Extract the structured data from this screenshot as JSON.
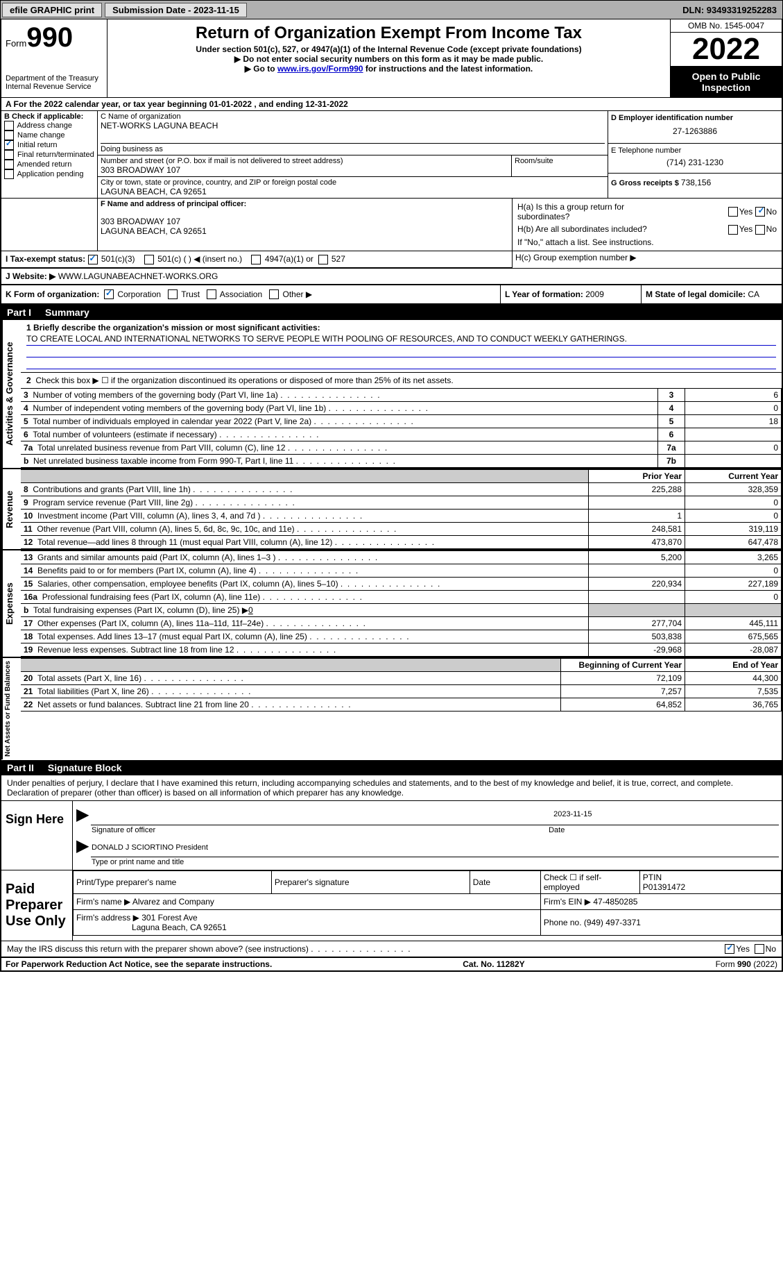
{
  "topbar": {
    "efile": "efile GRAPHIC print",
    "submission_label": "Submission Date - 2023-11-15",
    "dln_label": "DLN: 93493319252283"
  },
  "header": {
    "form_prefix": "Form",
    "form_number": "990",
    "dept": "Department of the Treasury",
    "irs": "Internal Revenue Service",
    "title": "Return of Organization Exempt From Income Tax",
    "subtitle1": "Under section 501(c), 527, or 4947(a)(1) of the Internal Revenue Code (except private foundations)",
    "subtitle2": "▶ Do not enter social security numbers on this form as it may be made public.",
    "subtitle3_pre": "▶ Go to ",
    "subtitle3_link": "www.irs.gov/Form990",
    "subtitle3_post": " for instructions and the latest information.",
    "omb": "OMB No. 1545-0047",
    "year": "2022",
    "open": "Open to Public Inspection"
  },
  "lineA": {
    "text_pre": "A For the 2022 calendar year, or tax year beginning ",
    "begin": "01-01-2022",
    "mid": " , and ending ",
    "end": "12-31-2022"
  },
  "sectionB": {
    "label": "B Check if applicable:",
    "items": [
      "Address change",
      "Name change",
      "Initial return",
      "Final return/terminated",
      "Amended return",
      "Application pending"
    ],
    "checked_index": 2
  },
  "sectionC": {
    "name_label": "C Name of organization",
    "name": "NET-WORKS LAGUNA BEACH",
    "dba_label": "Doing business as",
    "street_label": "Number and street (or P.O. box if mail is not delivered to street address)",
    "room_label": "Room/suite",
    "street": "303 BROADWAY 107",
    "city_label": "City or town, state or province, country, and ZIP or foreign postal code",
    "city": "LAGUNA BEACH, CA  92651"
  },
  "sectionD": {
    "label": "D Employer identification number",
    "value": "27-1263886"
  },
  "sectionE": {
    "label": "E Telephone number",
    "value": "(714) 231-1230"
  },
  "sectionG": {
    "label": "G Gross receipts $ ",
    "value": "738,156"
  },
  "sectionF": {
    "label": "F Name and address of principal officer:",
    "line1": "303 BROADWAY 107",
    "line2": "LAGUNA BEACH, CA  92651"
  },
  "sectionH": {
    "ha": "H(a)  Is this a group return for subordinates?",
    "hb": "H(b)  Are all subordinates included?",
    "hb_note": "If \"No,\" attach a list. See instructions.",
    "hc": "H(c)  Group exemption number ▶",
    "yes": "Yes",
    "no": "No"
  },
  "sectionI": {
    "label": "I   Tax-exempt status:",
    "opts": [
      "501(c)(3)",
      "501(c) (  ) ◀ (insert no.)",
      "4947(a)(1) or",
      "527"
    ]
  },
  "sectionJ": {
    "label": "J   Website: ▶",
    "value": "WWW.LAGUNABEACHNET-WORKS.ORG"
  },
  "sectionK": {
    "label": "K Form of organization:",
    "opts": [
      "Corporation",
      "Trust",
      "Association",
      "Other ▶"
    ]
  },
  "sectionL": {
    "label": "L Year of formation: ",
    "value": "2009"
  },
  "sectionM": {
    "label": "M State of legal domicile: ",
    "value": "CA"
  },
  "part1": {
    "title": "Part I",
    "name": "Summary",
    "line1_label": "1  Briefly describe the organization's mission or most significant activities:",
    "mission": "TO CREATE LOCAL AND INTERNATIONAL NETWORKS TO SERVE PEOPLE WITH POOLING OF RESOURCES, AND TO CONDUCT WEEKLY GATHERINGS.",
    "line2": "Check this box ▶ ☐ if the organization discontinued its operations or disposed of more than 25% of its net assets.",
    "vert_ag": "Activities & Governance",
    "vert_rev": "Revenue",
    "vert_exp": "Expenses",
    "vert_net": "Net Assets or Fund Balances",
    "prior_year": "Prior Year",
    "current_year": "Current Year",
    "boy": "Beginning of Current Year",
    "eoy": "End of Year",
    "rows_gov": [
      {
        "n": "3",
        "label": "Number of voting members of the governing body (Part VI, line 1a)",
        "box": "3",
        "v": "6"
      },
      {
        "n": "4",
        "label": "Number of independent voting members of the governing body (Part VI, line 1b)",
        "box": "4",
        "v": "0"
      },
      {
        "n": "5",
        "label": "Total number of individuals employed in calendar year 2022 (Part V, line 2a)",
        "box": "5",
        "v": "18"
      },
      {
        "n": "6",
        "label": "Total number of volunteers (estimate if necessary)",
        "box": "6",
        "v": ""
      },
      {
        "n": "7a",
        "label": "Total unrelated business revenue from Part VIII, column (C), line 12",
        "box": "7a",
        "v": "0"
      },
      {
        "n": "b",
        "label": "Net unrelated business taxable income from Form 990-T, Part I, line 11",
        "box": "7b",
        "v": ""
      }
    ],
    "rows_rev": [
      {
        "n": "8",
        "label": "Contributions and grants (Part VIII, line 1h)",
        "py": "225,288",
        "cy": "328,359"
      },
      {
        "n": "9",
        "label": "Program service revenue (Part VIII, line 2g)",
        "py": "",
        "cy": "0"
      },
      {
        "n": "10",
        "label": "Investment income (Part VIII, column (A), lines 3, 4, and 7d )",
        "py": "1",
        "cy": "0"
      },
      {
        "n": "11",
        "label": "Other revenue (Part VIII, column (A), lines 5, 6d, 8c, 9c, 10c, and 11e)",
        "py": "248,581",
        "cy": "319,119"
      },
      {
        "n": "12",
        "label": "Total revenue—add lines 8 through 11 (must equal Part VIII, column (A), line 12)",
        "py": "473,870",
        "cy": "647,478"
      }
    ],
    "rows_exp": [
      {
        "n": "13",
        "label": "Grants and similar amounts paid (Part IX, column (A), lines 1–3 )",
        "py": "5,200",
        "cy": "3,265"
      },
      {
        "n": "14",
        "label": "Benefits paid to or for members (Part IX, column (A), line 4)",
        "py": "",
        "cy": "0"
      },
      {
        "n": "15",
        "label": "Salaries, other compensation, employee benefits (Part IX, column (A), lines 5–10)",
        "py": "220,934",
        "cy": "227,189"
      },
      {
        "n": "16a",
        "label": "Professional fundraising fees (Part IX, column (A), line 11e)",
        "py": "",
        "cy": "0"
      },
      {
        "n": "b",
        "label": "Total fundraising expenses (Part IX, column (D), line 25) ▶",
        "below": "0",
        "py": "shaded",
        "cy": "shaded"
      },
      {
        "n": "17",
        "label": "Other expenses (Part IX, column (A), lines 11a–11d, 11f–24e)",
        "py": "277,704",
        "cy": "445,111"
      },
      {
        "n": "18",
        "label": "Total expenses. Add lines 13–17 (must equal Part IX, column (A), line 25)",
        "py": "503,838",
        "cy": "675,565"
      },
      {
        "n": "19",
        "label": "Revenue less expenses. Subtract line 18 from line 12",
        "py": "-29,968",
        "cy": "-28,087"
      }
    ],
    "rows_net": [
      {
        "n": "20",
        "label": "Total assets (Part X, line 16)",
        "py": "72,109",
        "cy": "44,300"
      },
      {
        "n": "21",
        "label": "Total liabilities (Part X, line 26)",
        "py": "7,257",
        "cy": "7,535"
      },
      {
        "n": "22",
        "label": "Net assets or fund balances. Subtract line 21 from line 20",
        "py": "64,852",
        "cy": "36,765"
      }
    ]
  },
  "part2": {
    "title": "Part II",
    "name": "Signature Block",
    "penalty": "Under penalties of perjury, I declare that I have examined this return, including accompanying schedules and statements, and to the best of my knowledge and belief, it is true, correct, and complete. Declaration of preparer (other than officer) is based on all information of which preparer has any knowledge.",
    "sign_here": "Sign Here",
    "sig_officer": "Signature of officer",
    "sig_date": "2023-11-15",
    "date_label": "Date",
    "officer_name": "DONALD J SCIORTINO  President",
    "type_name": "Type or print name and title",
    "paid": "Paid Preparer Use Only",
    "prep_name_label": "Print/Type preparer's name",
    "prep_sig_label": "Preparer's signature",
    "check_self": "Check ☐ if self-employed",
    "ptin_label": "PTIN",
    "ptin": "P01391472",
    "firm_name_label": "Firm's name   ▶",
    "firm_name": "Alvarez and Company",
    "firm_ein_label": "Firm's EIN ▶",
    "firm_ein": "47-4850285",
    "firm_addr_label": "Firm's address ▶",
    "firm_addr1": "301 Forest Ave",
    "firm_addr2": "Laguna Beach, CA  92651",
    "phone_label": "Phone no.",
    "phone": "(949) 497-3371",
    "may_irs": "May the IRS discuss this return with the preparer shown above? (see instructions)"
  },
  "footer": {
    "left": "For Paperwork Reduction Act Notice, see the separate instructions.",
    "mid": "Cat. No. 11282Y",
    "right": "Form 990 (2022)"
  }
}
